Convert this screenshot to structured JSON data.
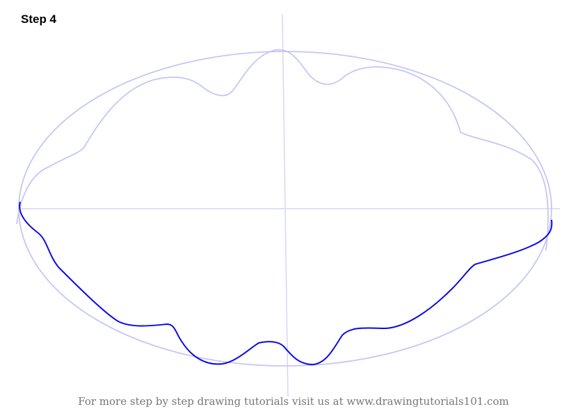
{
  "title": "Step 4",
  "footer": "For more step by step drawing tutorials visit us at www.drawingtutorials101.com",
  "colors": {
    "guide": "#c6c6f4",
    "outline": "#0a0ae6",
    "axis": "#d6d6f8"
  }
}
